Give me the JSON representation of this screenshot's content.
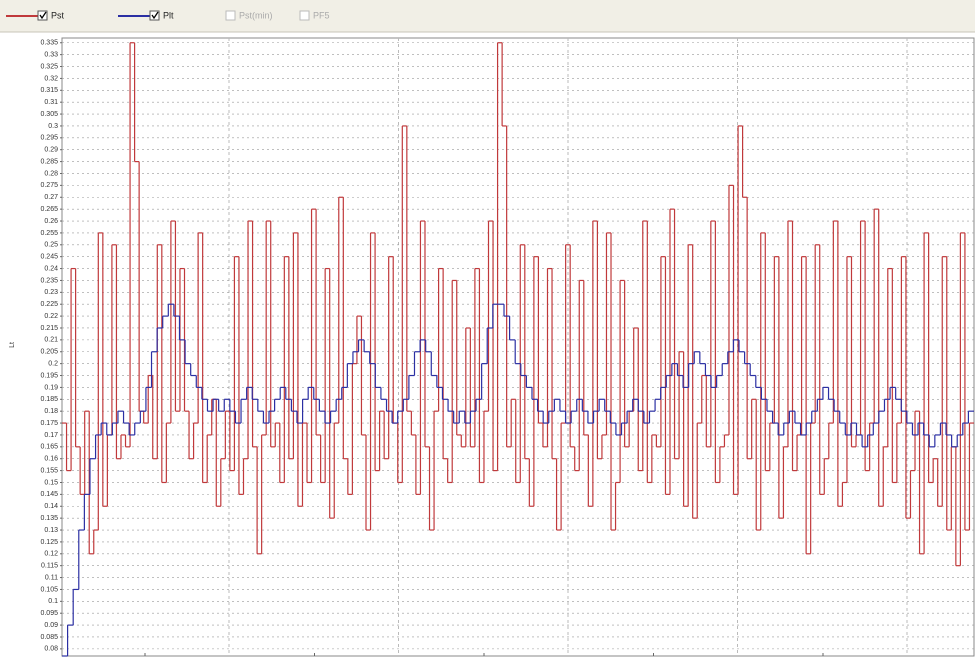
{
  "chart_data": {
    "type": "step-line",
    "y_label": "Lt",
    "series": [
      {
        "name": "Pst",
        "color": "#c0393b",
        "values": [
          0.175,
          0.155,
          0.24,
          0.165,
          0.145,
          0.18,
          0.12,
          0.13,
          0.255,
          0.14,
          0.17,
          0.25,
          0.16,
          0.17,
          0.165,
          0.335,
          0.285,
          0.18,
          0.175,
          0.195,
          0.16,
          0.25,
          0.15,
          0.175,
          0.26,
          0.18,
          0.24,
          0.18,
          0.16,
          0.175,
          0.255,
          0.15,
          0.17,
          0.185,
          0.14,
          0.16,
          0.18,
          0.155,
          0.245,
          0.145,
          0.16,
          0.26,
          0.165,
          0.12,
          0.17,
          0.26,
          0.165,
          0.175,
          0.15,
          0.245,
          0.16,
          0.255,
          0.14,
          0.175,
          0.15,
          0.265,
          0.17,
          0.15,
          0.24,
          0.135,
          0.175,
          0.27,
          0.16,
          0.145,
          0.2,
          0.22,
          0.17,
          0.13,
          0.255,
          0.155,
          0.18,
          0.16,
          0.245,
          0.175,
          0.15,
          0.3,
          0.18,
          0.17,
          0.145,
          0.26,
          0.165,
          0.13,
          0.18,
          0.24,
          0.16,
          0.15,
          0.235,
          0.17,
          0.165,
          0.215,
          0.165,
          0.24,
          0.15,
          0.18,
          0.26,
          0.155,
          0.335,
          0.3,
          0.165,
          0.185,
          0.15,
          0.25,
          0.16,
          0.14,
          0.245,
          0.175,
          0.165,
          0.24,
          0.16,
          0.13,
          0.175,
          0.25,
          0.165,
          0.155,
          0.235,
          0.17,
          0.14,
          0.26,
          0.16,
          0.17,
          0.255,
          0.13,
          0.15,
          0.235,
          0.165,
          0.18,
          0.215,
          0.155,
          0.26,
          0.15,
          0.17,
          0.165,
          0.245,
          0.145,
          0.265,
          0.16,
          0.205,
          0.14,
          0.25,
          0.135,
          0.175,
          0.195,
          0.165,
          0.26,
          0.15,
          0.165,
          0.17,
          0.275,
          0.145,
          0.3,
          0.27,
          0.16,
          0.185,
          0.13,
          0.255,
          0.155,
          0.175,
          0.245,
          0.135,
          0.165,
          0.26,
          0.155,
          0.17,
          0.245,
          0.12,
          0.175,
          0.25,
          0.145,
          0.16,
          0.175,
          0.26,
          0.14,
          0.15,
          0.245,
          0.165,
          0.17,
          0.26,
          0.155,
          0.175,
          0.265,
          0.14,
          0.165,
          0.24,
          0.15,
          0.175,
          0.245,
          0.135,
          0.155,
          0.18,
          0.12,
          0.255,
          0.15,
          0.16,
          0.14,
          0.245,
          0.13,
          0.165,
          0.115,
          0.255,
          0.13,
          0.175
        ]
      },
      {
        "name": "Plt",
        "color": "#2b2fa3",
        "values": [
          0.077,
          0.09,
          0.105,
          0.13,
          0.145,
          0.16,
          0.17,
          0.175,
          0.17,
          0.175,
          0.18,
          0.175,
          0.17,
          0.175,
          0.18,
          0.19,
          0.205,
          0.215,
          0.22,
          0.225,
          0.22,
          0.21,
          0.2,
          0.195,
          0.19,
          0.185,
          0.18,
          0.185,
          0.18,
          0.185,
          0.18,
          0.175,
          0.185,
          0.19,
          0.185,
          0.18,
          0.175,
          0.18,
          0.185,
          0.19,
          0.185,
          0.18,
          0.175,
          0.185,
          0.19,
          0.185,
          0.18,
          0.175,
          0.18,
          0.185,
          0.19,
          0.2,
          0.205,
          0.21,
          0.205,
          0.2,
          0.19,
          0.185,
          0.18,
          0.175,
          0.18,
          0.185,
          0.195,
          0.205,
          0.21,
          0.205,
          0.195,
          0.19,
          0.185,
          0.18,
          0.175,
          0.18,
          0.175,
          0.18,
          0.185,
          0.2,
          0.215,
          0.225,
          0.225,
          0.22,
          0.21,
          0.2,
          0.195,
          0.19,
          0.185,
          0.18,
          0.175,
          0.18,
          0.185,
          0.18,
          0.175,
          0.18,
          0.185,
          0.18,
          0.175,
          0.18,
          0.185,
          0.18,
          0.175,
          0.17,
          0.175,
          0.18,
          0.185,
          0.18,
          0.175,
          0.18,
          0.185,
          0.19,
          0.195,
          0.2,
          0.195,
          0.19,
          0.2,
          0.205,
          0.2,
          0.195,
          0.19,
          0.195,
          0.2,
          0.205,
          0.21,
          0.205,
          0.2,
          0.195,
          0.19,
          0.185,
          0.18,
          0.175,
          0.17,
          0.175,
          0.18,
          0.175,
          0.17,
          0.175,
          0.18,
          0.185,
          0.19,
          0.185,
          0.18,
          0.175,
          0.17,
          0.175,
          0.17,
          0.165,
          0.17,
          0.175,
          0.18,
          0.185,
          0.19,
          0.185,
          0.18,
          0.175,
          0.17,
          0.175,
          0.17,
          0.165,
          0.17,
          0.175,
          0.17,
          0.165,
          0.17,
          0.175,
          0.18
        ]
      }
    ],
    "inactive_legend": [
      "Pst(min)",
      "PF5"
    ],
    "ylim": [
      0.077,
      0.337
    ],
    "yticks": [
      0.08,
      0.085,
      0.09,
      0.095,
      0.1,
      0.105,
      0.11,
      0.115,
      0.12,
      0.125,
      0.13,
      0.135,
      0.14,
      0.145,
      0.15,
      0.155,
      0.16,
      0.165,
      0.17,
      0.175,
      0.18,
      0.185,
      0.19,
      0.195,
      0.2,
      0.205,
      0.21,
      0.215,
      0.22,
      0.225,
      0.23,
      0.235,
      0.24,
      0.245,
      0.25,
      0.255,
      0.26,
      0.265,
      0.27,
      0.275,
      0.28,
      0.285,
      0.29,
      0.295,
      0.3,
      0.305,
      0.31,
      0.315,
      0.32,
      0.325,
      0.33,
      0.335
    ],
    "grid": true
  }
}
